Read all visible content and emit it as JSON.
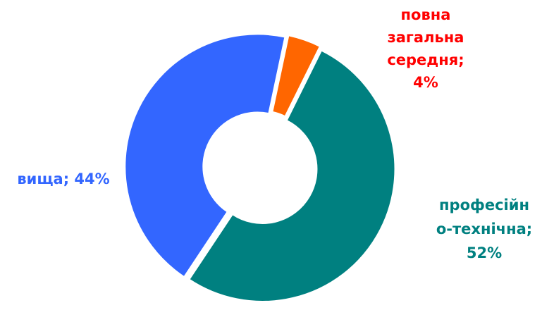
{
  "chart_data": {
    "type": "pie",
    "variant": "donut",
    "title": "",
    "slices": [
      {
        "name": "повна загальна середня",
        "value": 4,
        "color": "#FF6600",
        "label_color": "#FF0000",
        "label_lines": [
          "повна",
          "загальна",
          "середня;",
          "4%"
        ]
      },
      {
        "name": "професійно-технічна",
        "value": 52,
        "color": "#008080",
        "label_color": "#008080",
        "label_lines": [
          "професійн",
          "о-технічна;",
          "52%"
        ]
      },
      {
        "name": "вища",
        "value": 44,
        "color": "#3366FF",
        "label_color": "#3366FF",
        "label_lines": [
          "вища; 44%"
        ]
      }
    ]
  }
}
